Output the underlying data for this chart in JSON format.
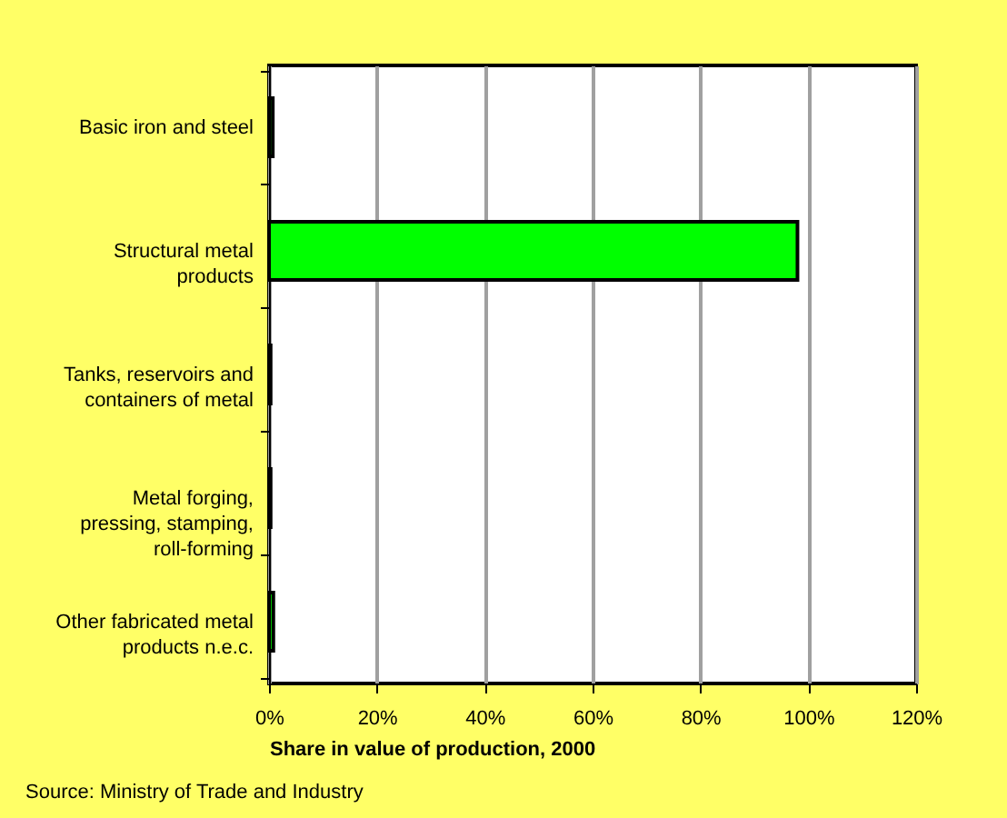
{
  "chart_data": {
    "type": "bar",
    "orientation": "horizontal",
    "xlabel": "Share in value of production, 2000",
    "categories": [
      "Basic iron and steel",
      "Structural metal\nproducts",
      "Tanks, reservoirs and\ncontainers of metal",
      "Metal forging,\npressing, stamping,\nroll-forming",
      "Other fabricated metal\nproducts n.e.c."
    ],
    "values": [
      0.7,
      98,
      0.3,
      0.3,
      0.8
    ],
    "colors": [
      "#00ff00",
      "#00ff00",
      "#00ff00",
      "#00ff00",
      "#00ff00"
    ],
    "xlim": [
      0,
      120
    ],
    "xticks": [
      {
        "value": 0,
        "label": "0%"
      },
      {
        "value": 20,
        "label": "20%"
      },
      {
        "value": 40,
        "label": "40%"
      },
      {
        "value": 60,
        "label": "60%"
      },
      {
        "value": 80,
        "label": "80%"
      },
      {
        "value": 100,
        "label": "100%"
      },
      {
        "value": 120,
        "label": "120%"
      }
    ],
    "grid": "x",
    "legend": false,
    "annotations": [
      "Source: Ministry of Trade and Industry"
    ]
  }
}
